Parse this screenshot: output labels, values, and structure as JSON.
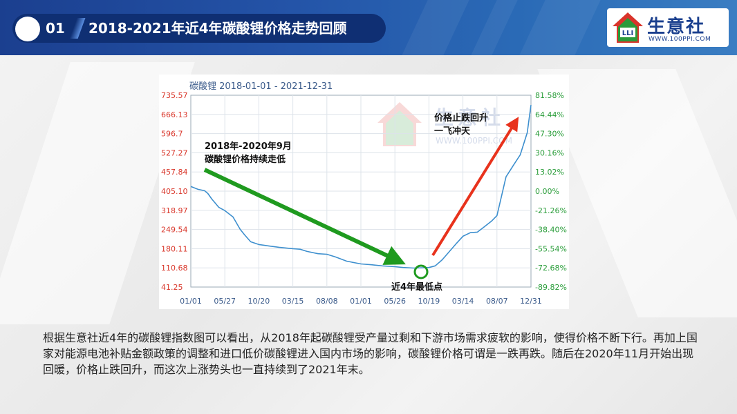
{
  "header": {
    "number": "01",
    "title": "2018-2021年近4年碳酸锂价格走势回顾"
  },
  "logo": {
    "name": "生意社",
    "url": "WWW.100PPI.COM",
    "badge": "LLI"
  },
  "chart_data": {
    "type": "line",
    "title": "碳酸锂 2018-01-01 - 2021-12-31",
    "x_ticks": [
      "01/01",
      "05/27",
      "10/20",
      "03/15",
      "08/08",
      "01/01",
      "05/26",
      "10/19",
      "03/14",
      "08/07",
      "12/31"
    ],
    "y_left_ticks": [
      "735.57",
      "666.13",
      "596.7",
      "527.27",
      "457.84",
      "405.10",
      "318.97",
      "249.54",
      "180.11",
      "110.68",
      "41.25"
    ],
    "y_right_ticks": [
      "81.58%",
      "64.44%",
      "47.30%",
      "30.16%",
      "13.02%",
      "0.00%",
      "-21.26%",
      "-38.40%",
      "-55.54%",
      "-72.68%",
      "-89.82%"
    ],
    "ylim": [
      41.25,
      735.57
    ],
    "x": [
      "2018-01-01",
      "2018-02-01",
      "2018-03-01",
      "2018-03-15",
      "2018-04-01",
      "2018-05-01",
      "2018-05-27",
      "2018-07-01",
      "2018-08-01",
      "2018-08-20",
      "2018-09-15",
      "2018-10-20",
      "2018-12-01",
      "2019-01-15",
      "2019-03-15",
      "2019-04-15",
      "2019-05-15",
      "2019-07-01",
      "2019-08-08",
      "2019-09-15",
      "2019-11-01",
      "2020-01-01",
      "2020-02-15",
      "2020-04-01",
      "2020-05-26",
      "2020-07-01",
      "2020-08-15",
      "2020-10-19",
      "2020-11-15",
      "2020-12-15",
      "2021-01-15",
      "2021-02-15",
      "2021-03-14",
      "2021-04-15",
      "2021-05-15",
      "2021-06-15",
      "2021-07-15",
      "2021-08-07",
      "2021-08-25",
      "2021-09-15",
      "2021-10-15",
      "2021-11-15",
      "2021-12-15",
      "2021-12-31"
    ],
    "y": [
      405.1,
      395,
      390,
      380,
      360,
      330,
      318,
      295,
      250,
      230,
      205,
      195,
      190,
      185,
      180,
      178,
      170,
      162,
      160,
      150,
      135,
      125,
      122,
      118,
      115,
      112,
      110,
      112,
      118,
      140,
      170,
      200,
      225,
      238,
      240,
      260,
      280,
      300,
      365,
      440,
      480,
      520,
      600,
      700
    ],
    "annotations": [
      "2018年-2020年9月",
      "碳酸锂价格持续走低",
      "价格止跌回升",
      "一飞冲天",
      "近4年最低点"
    ],
    "colors": {
      "line": "#3d8fce",
      "down_arrow": "#1f9a1f",
      "up_arrow": "#e8321c",
      "left_axis": "#d9362a",
      "right_axis": "#2a9d3a"
    }
  },
  "body_text": "根据生意社近4年的碳酸锂指数图可以看出，从2018年起碳酸锂受产量过剩和下游市场需求疲软的影响，使得价格不断下行。再加上国家对能源电池补贴金额政策的调整和进口低价碳酸锂进入国内市场的影响，碳酸锂价格可谓是一跌再跌。随后在2020年11月开始出现回暖，价格止跌回升，而这次上涨势头也一直持续到了2021年末。"
}
